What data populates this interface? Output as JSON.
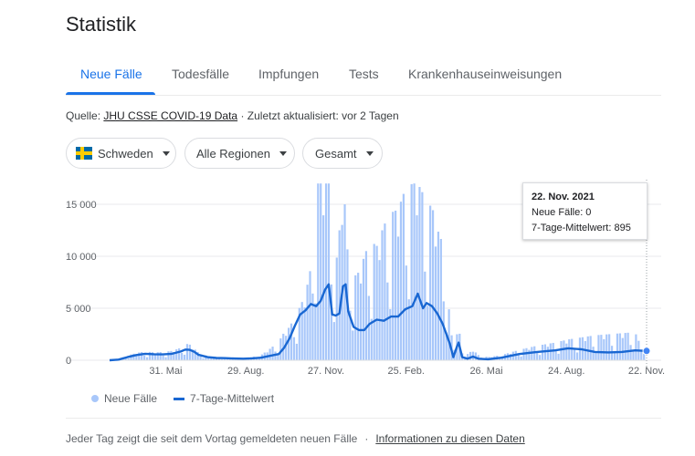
{
  "page": {
    "title": "Statistik"
  },
  "tabs": [
    {
      "label": "Neue Fälle",
      "active": true
    },
    {
      "label": "Todesfälle",
      "active": false
    },
    {
      "label": "Impfungen",
      "active": false
    },
    {
      "label": "Tests",
      "active": false
    },
    {
      "label": "Krankenhauseinweisungen",
      "active": false
    }
  ],
  "source": {
    "prefix": "Quelle:",
    "link_text": "JHU CSSE COVID-19 Data",
    "updated_text": "· Zuletzt aktualisiert: vor 2 Tagen"
  },
  "filters": {
    "country": "Schweden",
    "region": "Alle Regionen",
    "metric": "Gesamt"
  },
  "colors": {
    "accent": "#1a73e8",
    "bars": "#a8c7fa",
    "avg_line": "#1967d2"
  },
  "tooltip": {
    "date": "22. Nov. 2021",
    "cases_text": "Neue Fälle: 0",
    "avg_text": "7-Tage-Mittelwert: 895"
  },
  "legend": {
    "cases": "Neue Fälle",
    "avg": "7-Tage-Mittelwert"
  },
  "footer": {
    "note": "Jeder Tag zeigt die seit dem Vortag gemeldeten neuen Fälle",
    "separator": "·",
    "link": "Informationen zu diesen Daten"
  },
  "chart_data": {
    "type": "bar",
    "title": "Neue Fälle",
    "ylim": [
      0,
      17000
    ],
    "yticks": [
      0,
      5000,
      10000,
      15000
    ],
    "ytick_labels": [
      "0",
      "5 000",
      "10 000",
      "15 000"
    ],
    "xticks": [
      {
        "day": 63,
        "label": "31. Mai"
      },
      {
        "day": 153,
        "label": "29. Aug."
      },
      {
        "day": 243,
        "label": "27. Nov."
      },
      {
        "day": 333,
        "label": "25. Feb."
      },
      {
        "day": 423,
        "label": "26. Mai"
      },
      {
        "day": 513,
        "label": "24. Aug."
      },
      {
        "day": 603,
        "label": "22. Nov."
      }
    ],
    "series": [
      {
        "name": "7-Tage-Mittelwert",
        "type": "line",
        "points": [
          [
            0,
            0
          ],
          [
            10,
            60
          ],
          [
            20,
            300
          ],
          [
            30,
            500
          ],
          [
            40,
            620
          ],
          [
            50,
            580
          ],
          [
            60,
            560
          ],
          [
            70,
            620
          ],
          [
            80,
            840
          ],
          [
            85,
            1030
          ],
          [
            90,
            1000
          ],
          [
            95,
            820
          ],
          [
            100,
            520
          ],
          [
            110,
            300
          ],
          [
            120,
            220
          ],
          [
            130,
            200
          ],
          [
            140,
            170
          ],
          [
            150,
            150
          ],
          [
            160,
            180
          ],
          [
            170,
            250
          ],
          [
            180,
            420
          ],
          [
            190,
            600
          ],
          [
            196,
            1200
          ],
          [
            202,
            2100
          ],
          [
            208,
            3300
          ],
          [
            214,
            4400
          ],
          [
            220,
            4800
          ],
          [
            226,
            5400
          ],
          [
            232,
            5200
          ],
          [
            237,
            5700
          ],
          [
            242,
            6800
          ],
          [
            246,
            7300
          ],
          [
            250,
            4400
          ],
          [
            254,
            4300
          ],
          [
            258,
            4500
          ],
          [
            262,
            7100
          ],
          [
            265,
            7300
          ],
          [
            268,
            4700
          ],
          [
            274,
            3200
          ],
          [
            280,
            2900
          ],
          [
            286,
            2900
          ],
          [
            292,
            3500
          ],
          [
            300,
            3900
          ],
          [
            308,
            3800
          ],
          [
            316,
            4200
          ],
          [
            324,
            4200
          ],
          [
            332,
            4900
          ],
          [
            340,
            5200
          ],
          [
            346,
            6400
          ],
          [
            352,
            5000
          ],
          [
            356,
            5500
          ],
          [
            362,
            5200
          ],
          [
            368,
            4500
          ],
          [
            374,
            3500
          ],
          [
            382,
            1600
          ],
          [
            386,
            300
          ],
          [
            390,
            1300
          ],
          [
            392,
            1700
          ],
          [
            396,
            300
          ],
          [
            402,
            150
          ],
          [
            408,
            350
          ],
          [
            414,
            150
          ],
          [
            425,
            100
          ],
          [
            440,
            250
          ],
          [
            460,
            600
          ],
          [
            480,
            800
          ],
          [
            500,
            950
          ],
          [
            515,
            1150
          ],
          [
            530,
            1050
          ],
          [
            545,
            800
          ],
          [
            560,
            750
          ],
          [
            575,
            800
          ],
          [
            590,
            950
          ],
          [
            603,
            895
          ]
        ]
      },
      {
        "name": "Neue Fälle",
        "type": "bar",
        "envelope": [
          [
            0,
            0
          ],
          [
            10,
            120
          ],
          [
            20,
            450
          ],
          [
            30,
            700
          ],
          [
            40,
            850
          ],
          [
            50,
            750
          ],
          [
            60,
            800
          ],
          [
            70,
            900
          ],
          [
            80,
            1200
          ],
          [
            85,
            1600
          ],
          [
            90,
            1500
          ],
          [
            95,
            1100
          ],
          [
            100,
            700
          ],
          [
            110,
            400
          ],
          [
            120,
            300
          ],
          [
            130,
            250
          ],
          [
            140,
            220
          ],
          [
            150,
            200
          ],
          [
            160,
            300
          ],
          [
            170,
            500
          ],
          [
            180,
            1100
          ],
          [
            190,
            1800
          ],
          [
            196,
            2700
          ],
          [
            202,
            3200
          ],
          [
            208,
            4200
          ],
          [
            214,
            5200
          ],
          [
            220,
            6400
          ],
          [
            226,
            9000
          ],
          [
            232,
            17000
          ],
          [
            237,
            17000
          ],
          [
            242,
            17000
          ],
          [
            246,
            17000
          ],
          [
            250,
            12000
          ],
          [
            254,
            9000
          ],
          [
            258,
            12500
          ],
          [
            262,
            17000
          ],
          [
            265,
            14000
          ],
          [
            268,
            9000
          ],
          [
            274,
            8000
          ],
          [
            280,
            8500
          ],
          [
            286,
            10000
          ],
          [
            292,
            11500
          ],
          [
            300,
            11000
          ],
          [
            308,
            13000
          ],
          [
            316,
            14200
          ],
          [
            324,
            14500
          ],
          [
            332,
            16500
          ],
          [
            340,
            17000
          ],
          [
            346,
            17000
          ],
          [
            352,
            16000
          ],
          [
            356,
            15000
          ],
          [
            362,
            14800
          ],
          [
            368,
            12600
          ],
          [
            374,
            11200
          ],
          [
            382,
            4000
          ],
          [
            386,
            800
          ],
          [
            390,
            2500
          ],
          [
            392,
            3000
          ],
          [
            396,
            1200
          ],
          [
            402,
            600
          ],
          [
            408,
            1000
          ],
          [
            414,
            500
          ],
          [
            425,
            300
          ],
          [
            440,
            500
          ],
          [
            460,
            1000
          ],
          [
            480,
            1400
          ],
          [
            500,
            1700
          ],
          [
            515,
            2000
          ],
          [
            530,
            2200
          ],
          [
            545,
            2400
          ],
          [
            560,
            2500
          ],
          [
            575,
            2600
          ],
          [
            590,
            2700
          ],
          [
            603,
            0
          ]
        ]
      }
    ],
    "highlight": {
      "day": 603,
      "value": 895
    }
  }
}
